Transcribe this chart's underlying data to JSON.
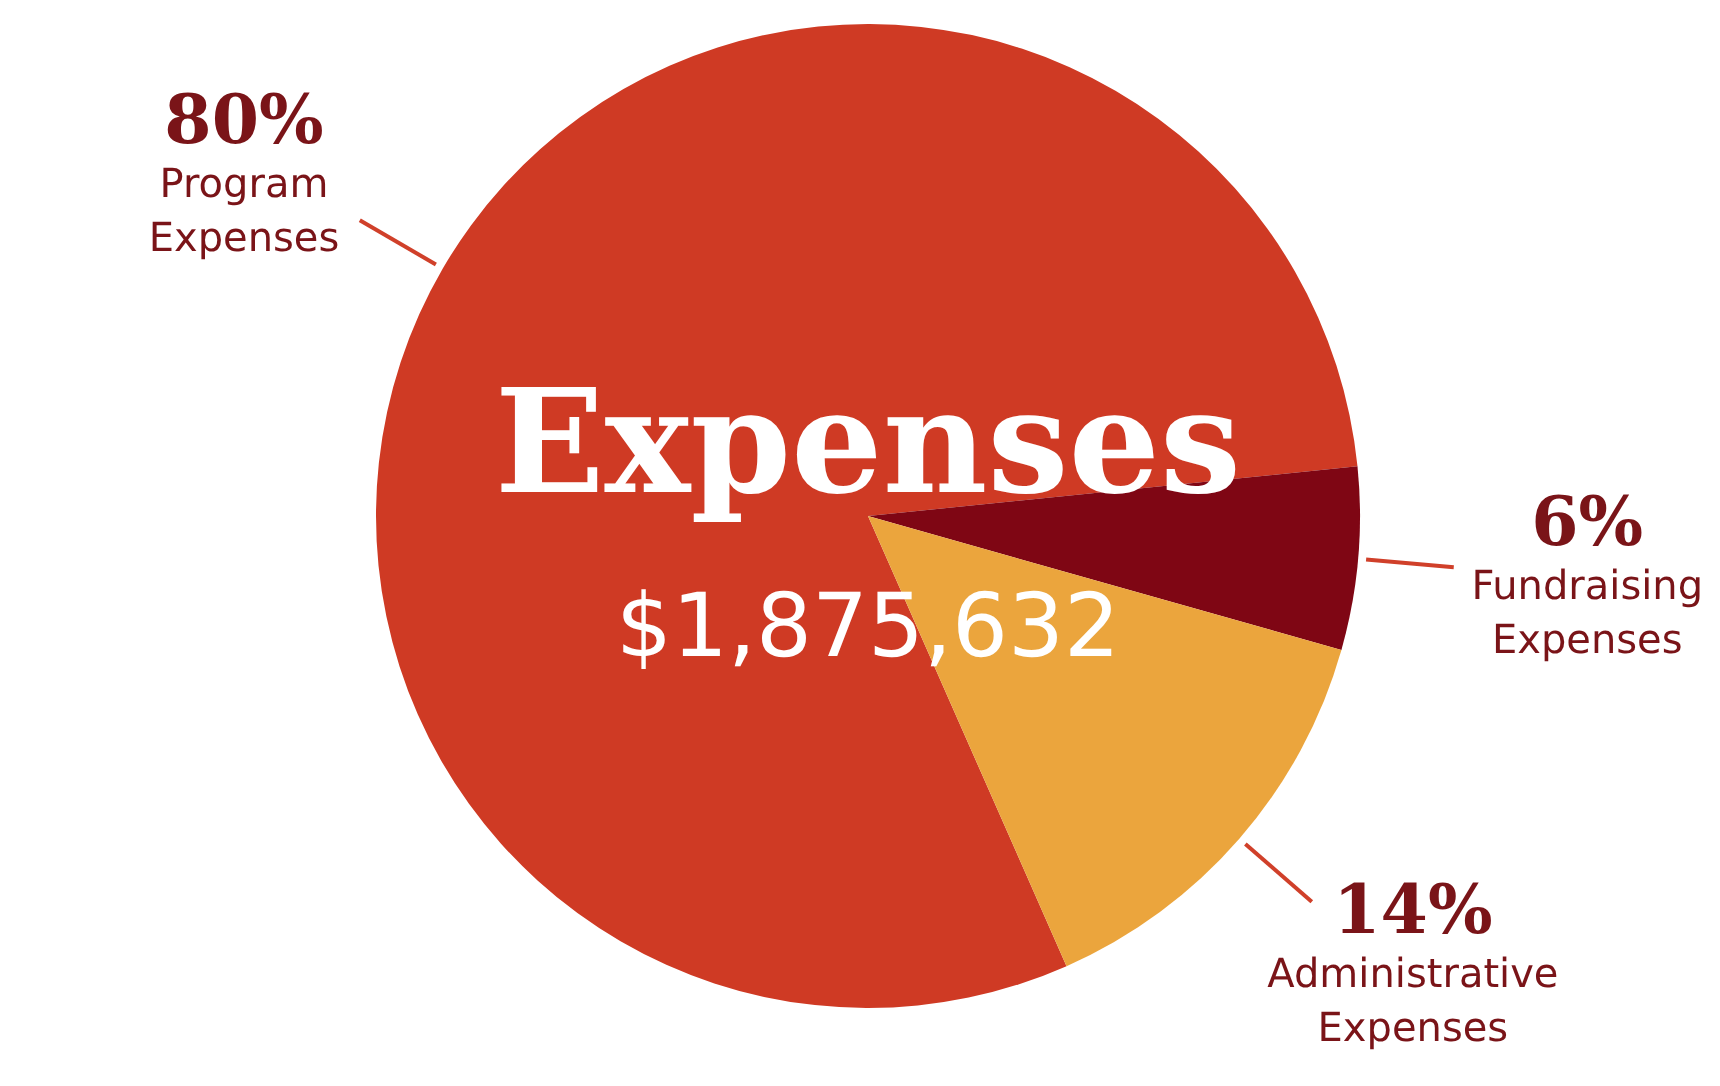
{
  "chart_data": {
    "type": "pie",
    "title": "Expenses",
    "subtitle": "$1,875,632",
    "categories": [
      "Program Expenses",
      "Fundraising Expenses",
      "Administrative Expenses"
    ],
    "values": [
      80,
      6,
      14
    ],
    "colors": [
      "#cf3a24",
      "#7f0614",
      "#eba53d"
    ],
    "value_labels": [
      "80%",
      "6%",
      "14%"
    ]
  }
}
